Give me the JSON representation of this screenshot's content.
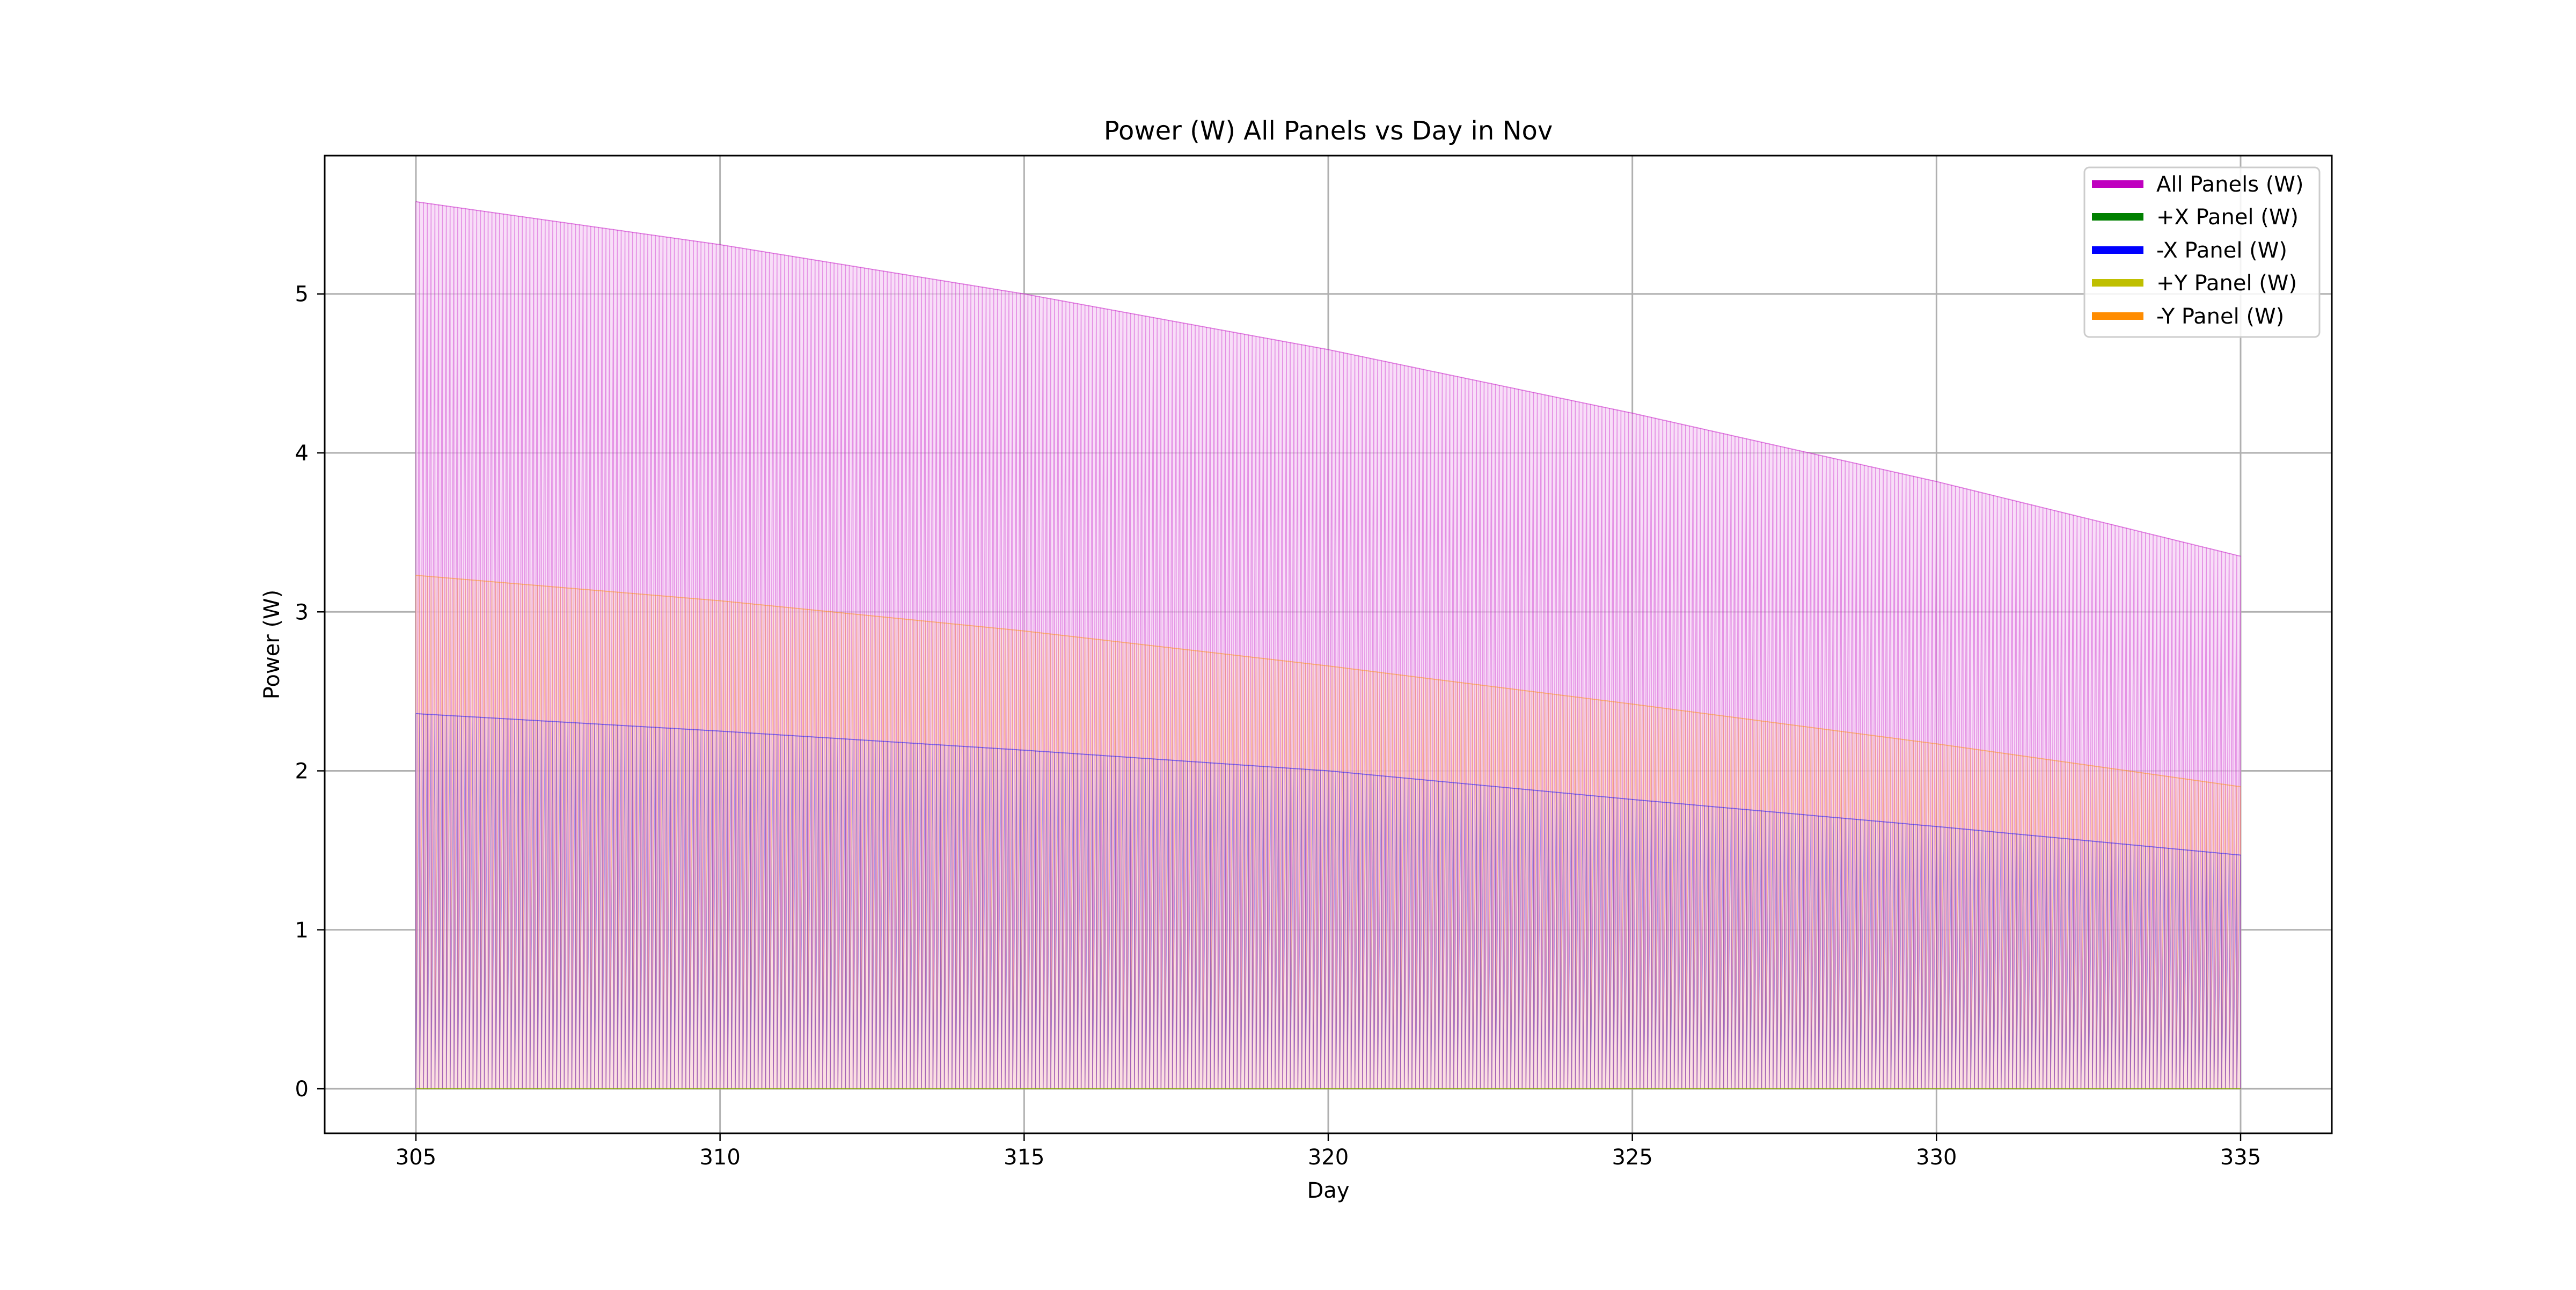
{
  "chart_data": {
    "type": "line",
    "title": "Power (W) All Panels vs Day in Nov",
    "xlabel": "Day",
    "ylabel": "Power (W)",
    "xlim": [
      303.5,
      336.5
    ],
    "ylim": [
      -0.28,
      5.87
    ],
    "x_ticks": [
      305,
      310,
      315,
      320,
      325,
      330,
      335
    ],
    "y_ticks": [
      0,
      1,
      2,
      3,
      4,
      5
    ],
    "grid": true,
    "legend_position": "top-right",
    "x_start": 305,
    "x_end": 335,
    "samples_per_day": 16,
    "series": [
      {
        "name": "All Panels (W)",
        "color": "#bf00bf",
        "fill_color": "#f5d0f5",
        "peak_days": [
          305,
          310,
          315,
          320,
          325,
          330,
          335
        ],
        "peak_values": [
          5.58,
          5.31,
          5.0,
          4.65,
          4.25,
          3.82,
          3.35
        ]
      },
      {
        "name": "+X Panel (W)",
        "color": "#008000",
        "peak_days": [
          305,
          335
        ],
        "peak_values": [
          0,
          0
        ]
      },
      {
        "name": "-X Panel (W)",
        "color": "#0000ff",
        "peak_days": [
          305,
          310,
          315,
          320,
          325,
          330,
          335
        ],
        "peak_values": [
          2.36,
          2.25,
          2.13,
          2.0,
          1.82,
          1.65,
          1.47
        ]
      },
      {
        "name": "+Y Panel (W)",
        "color": "#bfbf00",
        "peak_days": [
          305,
          335
        ],
        "peak_values": [
          0,
          0
        ]
      },
      {
        "name": "-Y Panel (W)",
        "color": "#ff8c00",
        "fill_color": "#fde0cf",
        "peak_days": [
          305,
          310,
          315,
          320,
          325,
          330,
          335
        ],
        "peak_values": [
          3.23,
          3.07,
          2.88,
          2.66,
          2.42,
          2.17,
          1.9
        ]
      }
    ]
  }
}
